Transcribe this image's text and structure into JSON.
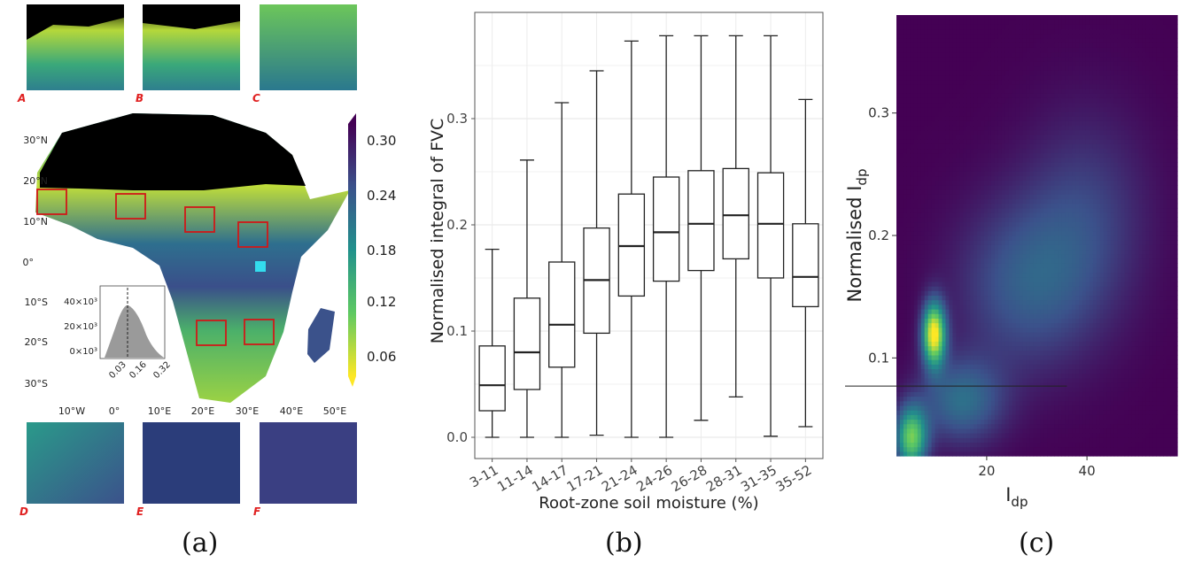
{
  "panels": {
    "a": {
      "caption": "(a)"
    },
    "b": {
      "caption": "(b)"
    },
    "c": {
      "caption": "(c)"
    }
  },
  "map": {
    "lat_labels": [
      "30°N",
      "20°N",
      "10°N",
      "0°",
      "10°S",
      "20°S",
      "30°S"
    ],
    "lon_labels": [
      "10°W",
      "0°",
      "10°E",
      "20°E",
      "30°E",
      "40°E",
      "50°E"
    ],
    "region_letters": [
      "A",
      "B",
      "C",
      "D",
      "E",
      "F"
    ],
    "colorbar": {
      "ticks": [
        "0.30",
        "0.24",
        "0.18",
        "0.12",
        "0.06"
      ],
      "colors": [
        "#440154",
        "#3b528b",
        "#21918c",
        "#5ec962",
        "#fde725"
      ]
    },
    "inset": {
      "y_ticks": [
        "40×10³",
        "20×10³",
        "0×10³"
      ],
      "x_ticks": [
        "0.03",
        "0.16",
        "0.32"
      ]
    }
  },
  "chart_data": [
    {
      "type": "box",
      "xlabel": "Root-zone soil moisture (%)",
      "ylabel": "Normalised integral of FVC",
      "ylim": [
        -0.02,
        0.4
      ],
      "y_ticks": [
        0.0,
        0.1,
        0.2,
        0.3
      ],
      "y_tick_labels": [
        "0.0",
        "0.1",
        "0.2",
        "0.3"
      ],
      "grid": true,
      "categories": [
        "3-11",
        "11-14",
        "14-17",
        "17-21",
        "21-24",
        "24-26",
        "26-28",
        "28-31",
        "31-35",
        "35-52"
      ],
      "boxes": [
        {
          "min": 0.0,
          "q1": 0.025,
          "median": 0.049,
          "q3": 0.086,
          "max": 0.177
        },
        {
          "min": 0.0,
          "q1": 0.045,
          "median": 0.08,
          "q3": 0.131,
          "max": 0.261
        },
        {
          "min": 0.0,
          "q1": 0.066,
          "median": 0.106,
          "q3": 0.165,
          "max": 0.315
        },
        {
          "min": 0.002,
          "q1": 0.098,
          "median": 0.148,
          "q3": 0.197,
          "max": 0.345
        },
        {
          "min": 0.0,
          "q1": 0.133,
          "median": 0.18,
          "q3": 0.229,
          "max": 0.373
        },
        {
          "min": 0.0,
          "q1": 0.147,
          "median": 0.193,
          "q3": 0.245,
          "max": 0.378
        },
        {
          "min": 0.016,
          "q1": 0.157,
          "median": 0.201,
          "q3": 0.251,
          "max": 0.378
        },
        {
          "min": 0.038,
          "q1": 0.168,
          "median": 0.209,
          "q3": 0.253,
          "max": 0.378
        },
        {
          "min": 0.001,
          "q1": 0.15,
          "median": 0.201,
          "q3": 0.249,
          "max": 0.378
        },
        {
          "min": 0.01,
          "q1": 0.123,
          "median": 0.151,
          "q3": 0.201,
          "max": 0.318
        }
      ]
    },
    {
      "type": "heatmap",
      "xlabel": "I",
      "xlabel_sub": "dp",
      "ylabel": "Normalised I",
      "ylabel_sub": "dp",
      "xlim": [
        2,
        58
      ],
      "ylim": [
        0.02,
        0.38
      ],
      "x_ticks": [
        20,
        40
      ],
      "y_ticks": [
        0.1,
        0.2,
        0.3
      ],
      "y_tick_labels": [
        "0.1",
        "0.2",
        "0.3"
      ],
      "hline_y": 0.077,
      "colormap": [
        "#440154",
        "#3b528b",
        "#21918c",
        "#5ec962",
        "#fde725"
      ],
      "density_peaks": [
        {
          "x": 9.5,
          "y": 0.12,
          "sx": 1.6,
          "sy": 0.018,
          "w": 1.0
        },
        {
          "x": 5.0,
          "y": 0.035,
          "sx": 2.2,
          "sy": 0.018,
          "w": 0.75
        },
        {
          "x": 15.0,
          "y": 0.065,
          "sx": 6.0,
          "sy": 0.025,
          "w": 0.35
        },
        {
          "x": 28.0,
          "y": 0.16,
          "sx": 10.0,
          "sy": 0.05,
          "w": 0.28
        },
        {
          "x": 40.0,
          "y": 0.22,
          "sx": 9.0,
          "sy": 0.06,
          "w": 0.18
        }
      ]
    }
  ]
}
